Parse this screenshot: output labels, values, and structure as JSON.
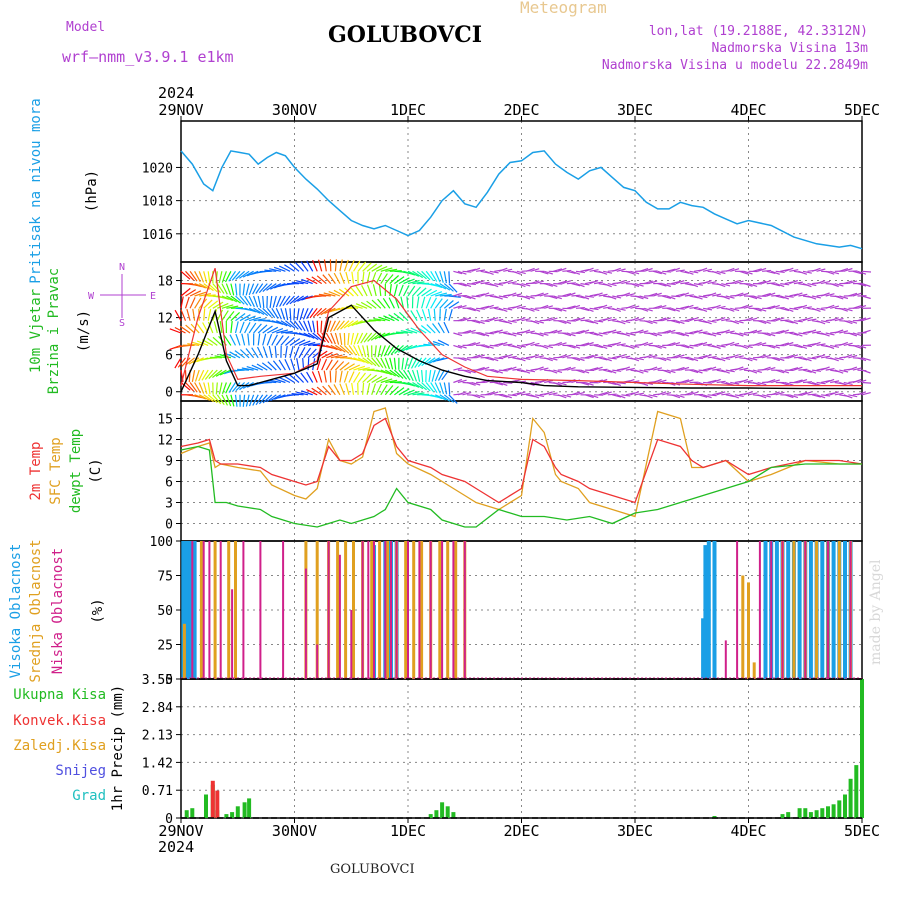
{
  "header": {
    "model_label": "Model",
    "model_name": "wrf—nmm_v3.9.1  e1km",
    "station": "GOLUBOVCI",
    "meteogram": "Meteogram",
    "lonlat": "lon,lat (19.2188E, 42.3312N)",
    "elevation": "Nadmorska Visina 13m",
    "model_elevation": "Nadmorska Visina u modelu 22.2849m",
    "watermark": "made by Angel",
    "footer_station": "GOLUBOVCI"
  },
  "colors": {
    "pressure": "#1a9fe6",
    "wind_label": "#22bb22",
    "temp2m": "#ee3333",
    "sfc": "#e0a020",
    "dewpt": "#22bb22",
    "high_cloud": "#1a9fe6",
    "mid_cloud": "#e0a020",
    "low_cloud": "#d0208a",
    "purple": "#b040d0",
    "total_precip": "#22bb22"
  },
  "chart_data": [
    {
      "type": "line",
      "id": "pressure",
      "ylabel_left": "Pritisak na nivou mora",
      "ylabel": "(hPa)",
      "x_top_year": "2024",
      "x_ticks": [
        "29NOV",
        "30NOV",
        "1DEC",
        "2DEC",
        "3DEC",
        "4DEC",
        "5DEC"
      ],
      "ylim": [
        1014.3,
        1022.8
      ],
      "yticks": [
        1016,
        1018,
        1020
      ],
      "grid": true,
      "series": [
        {
          "x": [
            0,
            0.1,
            0.2,
            0.28,
            0.36,
            0.44,
            0.52,
            0.6,
            0.68,
            0.76,
            0.84,
            0.92,
            1.0,
            1.1,
            1.2,
            1.3,
            1.4,
            1.5,
            1.6,
            1.7,
            1.8,
            1.9,
            2.0,
            2.1,
            2.2,
            2.3,
            2.4,
            2.5,
            2.6,
            2.7,
            2.8,
            2.9,
            3.0,
            3.1,
            3.2,
            3.3,
            3.4,
            3.5,
            3.6,
            3.7,
            3.8,
            3.9,
            4.0,
            4.1,
            4.2,
            4.3,
            4.4,
            4.5,
            4.6,
            4.7,
            4.8,
            4.9,
            5.0,
            5.2,
            5.4,
            5.6,
            5.8,
            5.9,
            6.0
          ],
          "values": [
            1021.0,
            1020.2,
            1019.0,
            1018.6,
            1020.0,
            1021.0,
            1020.9,
            1020.8,
            1020.2,
            1020.6,
            1020.9,
            1020.7,
            1020.0,
            1019.3,
            1018.7,
            1018.0,
            1017.4,
            1016.8,
            1016.5,
            1016.3,
            1016.5,
            1016.2,
            1015.9,
            1016.2,
            1017.0,
            1018.0,
            1018.6,
            1017.8,
            1017.6,
            1018.5,
            1019.6,
            1020.3,
            1020.4,
            1020.9,
            1021.0,
            1020.2,
            1019.7,
            1019.3,
            1019.8,
            1020.0,
            1019.4,
            1018.8,
            1018.6,
            1017.9,
            1017.5,
            1017.5,
            1017.9,
            1017.7,
            1017.6,
            1017.2,
            1016.9,
            1016.6,
            1016.8,
            1016.5,
            1015.8,
            1015.4,
            1015.2,
            1015.3,
            1015.1
          ]
        }
      ]
    },
    {
      "type": "line",
      "id": "wind",
      "ylabel_left": [
        "10m Vjetar",
        "Brzina i Pravac"
      ],
      "ylabel": "(m/s)",
      "compass": [
        "N",
        "W",
        "E",
        "S"
      ],
      "ylim": [
        -1.5,
        21
      ],
      "yticks": [
        0,
        6,
        12,
        18
      ],
      "grid": true,
      "series": [
        {
          "name": "speed",
          "x": [
            0,
            0.15,
            0.3,
            0.4,
            0.5,
            0.6,
            0.7,
            0.8,
            1.0,
            1.2,
            1.3,
            1.5,
            1.7,
            1.9,
            2.1,
            2.3,
            2.5,
            2.7,
            3.0,
            3.2,
            3.5,
            4.0,
            4.5,
            5.0,
            5.5,
            6.0
          ],
          "values": [
            0,
            6,
            13,
            5,
            1,
            1,
            1.5,
            2,
            3,
            4.5,
            12,
            14,
            10,
            7,
            5,
            3.5,
            2.5,
            1.8,
            1.5,
            1.0,
            0.8,
            0.7,
            0.6,
            0.6,
            0.5,
            0.5
          ]
        },
        {
          "name": "gust",
          "x": [
            0,
            0.15,
            0.3,
            0.4,
            0.5,
            0.7,
            1.0,
            1.2,
            1.3,
            1.5,
            1.7,
            1.9,
            2.1,
            2.3,
            2.5,
            2.7,
            3.0,
            3.5,
            4.0,
            4.5,
            5.0,
            5.5,
            6.0
          ],
          "values": [
            1,
            12,
            20,
            6,
            2,
            2.5,
            3,
            5,
            13,
            17,
            18,
            15,
            10,
            6,
            4,
            2.5,
            2,
            1.8,
            1.5,
            1.2,
            1,
            1,
            1
          ]
        }
      ]
    },
    {
      "type": "line",
      "id": "temperature",
      "ylabel_left": [
        "2m Temp",
        "SFC Temp",
        "dewpt Temp"
      ],
      "ylabel": "(C)",
      "ylim": [
        -2.5,
        17.5
      ],
      "yticks": [
        0,
        3,
        6,
        9,
        12,
        15
      ],
      "grid": true,
      "series": [
        {
          "name": "2m Temp",
          "x": [
            0,
            0.15,
            0.25,
            0.3,
            0.35,
            0.5,
            0.7,
            0.8,
            1.0,
            1.1,
            1.2,
            1.3,
            1.4,
            1.5,
            1.6,
            1.7,
            1.8,
            1.9,
            2.0,
            2.2,
            2.3,
            2.5,
            2.6,
            2.8,
            3.0,
            3.1,
            3.2,
            3.3,
            3.35,
            3.5,
            3.6,
            3.8,
            4.0,
            4.2,
            4.4,
            4.5,
            4.6,
            4.8,
            5.0,
            5.2,
            5.5,
            5.8,
            6.0
          ],
          "values": [
            11,
            11.5,
            12,
            9,
            8.5,
            8.5,
            8,
            7,
            6,
            5.5,
            6,
            11,
            9,
            9,
            10,
            14,
            15,
            11,
            9,
            8,
            7,
            6,
            5,
            3,
            5,
            12,
            11,
            8,
            7,
            6,
            5,
            4,
            3,
            12,
            11,
            9,
            8,
            9,
            7,
            8,
            9,
            9,
            8.5
          ]
        },
        {
          "name": "SFC Temp",
          "x": [
            0,
            0.15,
            0.25,
            0.3,
            0.35,
            0.5,
            0.7,
            0.8,
            1.0,
            1.1,
            1.2,
            1.3,
            1.4,
            1.5,
            1.6,
            1.7,
            1.8,
            1.9,
            2.0,
            2.2,
            2.3,
            2.5,
            2.6,
            2.8,
            3.0,
            3.1,
            3.2,
            3.3,
            3.35,
            3.5,
            3.6,
            3.8,
            4.0,
            4.2,
            4.4,
            4.5,
            4.6,
            4.8,
            5.0,
            5.2,
            5.5,
            5.8,
            6.0
          ],
          "values": [
            10,
            11,
            11.5,
            8,
            8.5,
            8,
            7.5,
            5.5,
            4,
            3.5,
            5,
            12,
            9,
            8.5,
            9.5,
            16,
            16.5,
            10,
            8.5,
            7,
            6,
            4,
            3,
            2,
            4,
            15,
            13,
            7,
            6,
            5,
            3,
            2,
            1,
            16,
            15,
            8,
            8,
            9,
            6,
            7,
            9,
            8.5,
            8.5
          ]
        },
        {
          "name": "dewpt Temp",
          "x": [
            0,
            0.15,
            0.25,
            0.3,
            0.4,
            0.5,
            0.7,
            0.8,
            1.0,
            1.2,
            1.3,
            1.4,
            1.5,
            1.7,
            1.8,
            1.9,
            2.0,
            2.2,
            2.3,
            2.5,
            2.6,
            2.8,
            3.0,
            3.2,
            3.4,
            3.6,
            3.8,
            4.0,
            4.2,
            4.4,
            4.5,
            4.6,
            4.8,
            5.0,
            5.2,
            5.5,
            5.8,
            6.0
          ],
          "values": [
            10.5,
            11,
            10.5,
            3,
            3,
            2.5,
            2,
            1,
            0,
            -0.5,
            0,
            0.5,
            0,
            1,
            2,
            5,
            3,
            2,
            0.5,
            -0.5,
            -0.5,
            2,
            1,
            1,
            0.5,
            1,
            0,
            1.5,
            2,
            3,
            3.5,
            4,
            5,
            6,
            8,
            8.5,
            8.5,
            8.5
          ]
        }
      ]
    },
    {
      "type": "bar",
      "id": "clouds",
      "ylabel_left": [
        "Visoka Oblacnost",
        "Srednja Oblacnost",
        "Niska  Oblacnost"
      ],
      "ylabel": "(%)",
      "ylim": [
        0,
        100
      ],
      "yticks": [
        0,
        25,
        50,
        75,
        100
      ],
      "series": [
        {
          "name": "Visoka Oblacnost",
          "x": [
            0.02,
            0.05,
            0.08,
            0.12,
            1.7,
            1.8,
            1.85,
            1.9,
            4.6,
            4.62,
            4.65,
            4.7,
            5.15,
            5.2,
            5.25,
            5.3,
            5.35,
            5.4,
            5.45,
            5.5,
            5.55,
            5.6,
            5.65,
            5.7,
            5.75,
            5.8,
            5.85,
            5.9
          ],
          "values": [
            100,
            100,
            100,
            100,
            97,
            100,
            100,
            100,
            44,
            97,
            100,
            100,
            100,
            100,
            100,
            100,
            100,
            100,
            100,
            100,
            100,
            100,
            100,
            100,
            100,
            100,
            100,
            100
          ]
        },
        {
          "name": "Srednja Oblacnost",
          "x": [
            0.03,
            0.18,
            0.3,
            0.42,
            0.48,
            1.1,
            1.2,
            1.3,
            1.38,
            1.45,
            1.52,
            1.6,
            1.68,
            1.75,
            1.82,
            1.9,
            1.98,
            2.05,
            2.12,
            2.2,
            2.28,
            2.35,
            2.42,
            2.5,
            4.95,
            5.0,
            5.05,
            5.3,
            5.4,
            5.5,
            5.6,
            5.7,
            5.8,
            5.9
          ],
          "values": [
            40,
            100,
            100,
            100,
            100,
            100,
            100,
            100,
            100,
            100,
            100,
            100,
            100,
            100,
            100,
            100,
            100,
            100,
            100,
            100,
            100,
            100,
            100,
            100,
            75,
            70,
            12,
            100,
            100,
            100,
            100,
            100,
            100,
            100
          ]
        },
        {
          "name": "Niska  Oblacnost",
          "x": [
            0.1,
            0.2,
            0.25,
            0.35,
            0.45,
            0.55,
            0.7,
            0.9,
            1.1,
            1.2,
            1.3,
            1.4,
            1.5,
            1.6,
            1.65,
            1.7,
            1.8,
            1.85,
            1.9,
            2.0,
            2.1,
            2.2,
            2.3,
            2.4,
            2.5,
            4.8,
            4.9,
            5.1,
            5.2,
            5.3,
            5.5,
            5.7,
            5.9
          ],
          "values": [
            100,
            100,
            100,
            100,
            65,
            100,
            100,
            100,
            80,
            25,
            100,
            90,
            50,
            100,
            100,
            100,
            100,
            100,
            100,
            100,
            100,
            100,
            100,
            100,
            100,
            28,
            100,
            100,
            100,
            100,
            100,
            100,
            100
          ]
        }
      ]
    },
    {
      "type": "bar",
      "id": "precip",
      "ylabel_left": [
        "Ukupna  Kisa",
        "Konvek.Kisa",
        "Zaledj.Kisa",
        "Snijeg",
        "Grad"
      ],
      "ylabel": "1hr Precip (mm)",
      "ylim": [
        0,
        3.55
      ],
      "yticks": [
        0,
        0.71,
        1.42,
        2.13,
        2.84,
        3.55
      ],
      "x_bottom_year": "2024",
      "series": [
        {
          "name": "Ukupna  Kisa",
          "x": [
            0.05,
            0.1,
            0.22,
            0.28,
            0.32,
            0.4,
            0.45,
            0.5,
            0.56,
            0.6,
            2.2,
            2.25,
            2.3,
            2.35,
            2.4,
            4.7,
            5.3,
            5.35,
            5.45,
            5.5,
            5.55,
            5.6,
            5.65,
            5.7,
            5.75,
            5.8,
            5.85,
            5.9,
            5.95,
            6.0
          ],
          "values": [
            0.2,
            0.25,
            0.6,
            0.85,
            0.2,
            0.1,
            0.15,
            0.3,
            0.4,
            0.5,
            0.1,
            0.2,
            0.4,
            0.3,
            0.15,
            0.05,
            0.1,
            0.15,
            0.25,
            0.25,
            0.15,
            0.2,
            0.25,
            0.3,
            0.35,
            0.45,
            0.6,
            1.0,
            1.35,
            3.55
          ]
        },
        {
          "name": "Konvek.Kisa",
          "x": [
            0.28,
            0.32
          ],
          "values": [
            0.95,
            0.7
          ]
        }
      ]
    }
  ]
}
